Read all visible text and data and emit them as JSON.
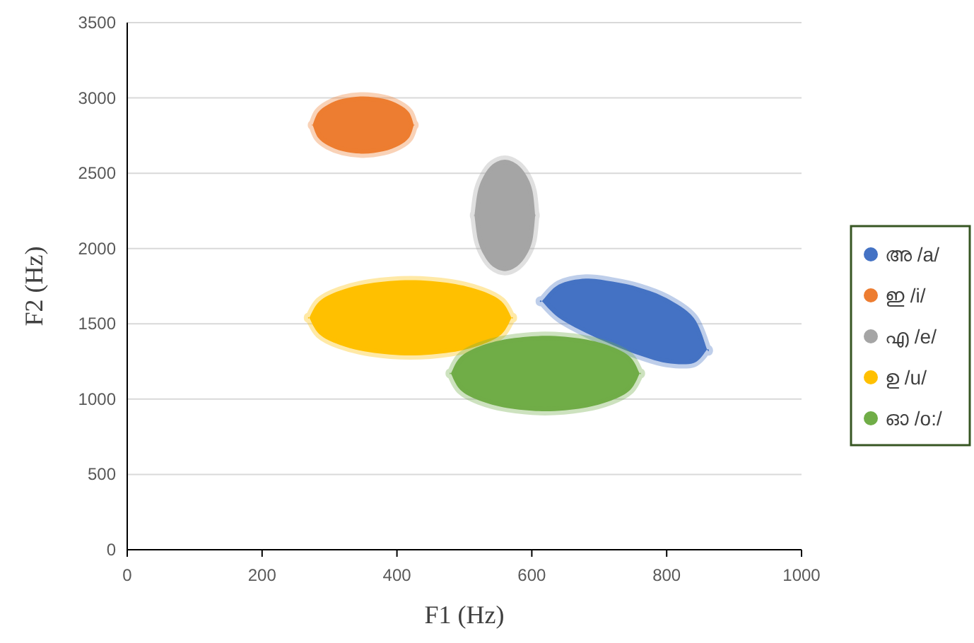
{
  "chart_data": {
    "type": "line",
    "xlabel": "F1 (Hz)",
    "ylabel": "F2 (Hz)",
    "xlim": [
      0,
      1000
    ],
    "ylim": [
      0,
      3500
    ],
    "xticks": [
      0,
      200,
      400,
      600,
      800,
      1000
    ],
    "yticks": [
      0,
      500,
      1000,
      1500,
      2000,
      2500,
      3000,
      3500
    ],
    "grid": "y",
    "legend": "right",
    "series": [
      {
        "name": "അ /a/",
        "color": "#4472c4",
        "x": [
          615,
          640,
          680,
          720,
          760,
          800,
          840,
          860
        ],
        "values": [
          null,
          null,
          null,
          null,
          null,
          null,
          null,
          null
        ],
        "upper": [
          1650,
          1760,
          1800,
          1780,
          1740,
          1670,
          1540,
          1330
        ],
        "lower": [
          1650,
          1540,
          1440,
          1360,
          1290,
          1240,
          1240,
          1330
        ]
      },
      {
        "name": "ഇ /i/",
        "color": "#ed7d31",
        "x": [
          275,
          283,
          298,
          320,
          350,
          380,
          403,
          418,
          425
        ],
        "values": [
          null,
          null,
          null,
          null,
          null,
          null,
          null,
          null,
          null
        ],
        "upper": [
          2820,
          2903,
          2956,
          2994,
          3010,
          2994,
          2956,
          2903,
          2820
        ],
        "lower": [
          2820,
          2737,
          2684,
          2646,
          2630,
          2646,
          2684,
          2737,
          2820
        ]
      },
      {
        "name": "എ /e/",
        "color": "#a5a5a5",
        "x": [
          515,
          520,
          529,
          542,
          560,
          578,
          592,
          601,
          605
        ],
        "values": [
          null,
          null,
          null,
          null,
          null,
          null,
          null,
          null,
          null
        ],
        "upper": [
          2220,
          2381,
          2484,
          2559,
          2590,
          2559,
          2484,
          2381,
          2220
        ],
        "lower": [
          2220,
          2059,
          1956,
          1881,
          1850,
          1881,
          1956,
          2059,
          2220
        ]
      },
      {
        "name": "ഉ /u/",
        "color": "#ffc000",
        "x": [
          270,
          285,
          315,
          360,
          420,
          480,
          525,
          555,
          570
        ],
        "values": [
          null,
          null,
          null,
          null,
          null,
          null,
          null,
          null,
          null
        ],
        "upper": [
          1540,
          1649,
          1719,
          1769,
          1790,
          1769,
          1719,
          1649,
          1540
        ],
        "lower": [
          1540,
          1431,
          1361,
          1311,
          1290,
          1311,
          1361,
          1431,
          1540
        ]
      },
      {
        "name": "ഓ /o:/",
        "color": "#70ad47",
        "x": [
          480,
          494,
          522,
          564,
          620,
          676,
          718,
          746,
          760
        ],
        "values": [
          null,
          null,
          null,
          null,
          null,
          null,
          null,
          null,
          null
        ],
        "upper": [
          1170,
          1279,
          1349,
          1399,
          1420,
          1399,
          1349,
          1279,
          1170
        ],
        "lower": [
          1170,
          1061,
          991,
          941,
          920,
          941,
          991,
          1061,
          1170
        ]
      }
    ]
  }
}
